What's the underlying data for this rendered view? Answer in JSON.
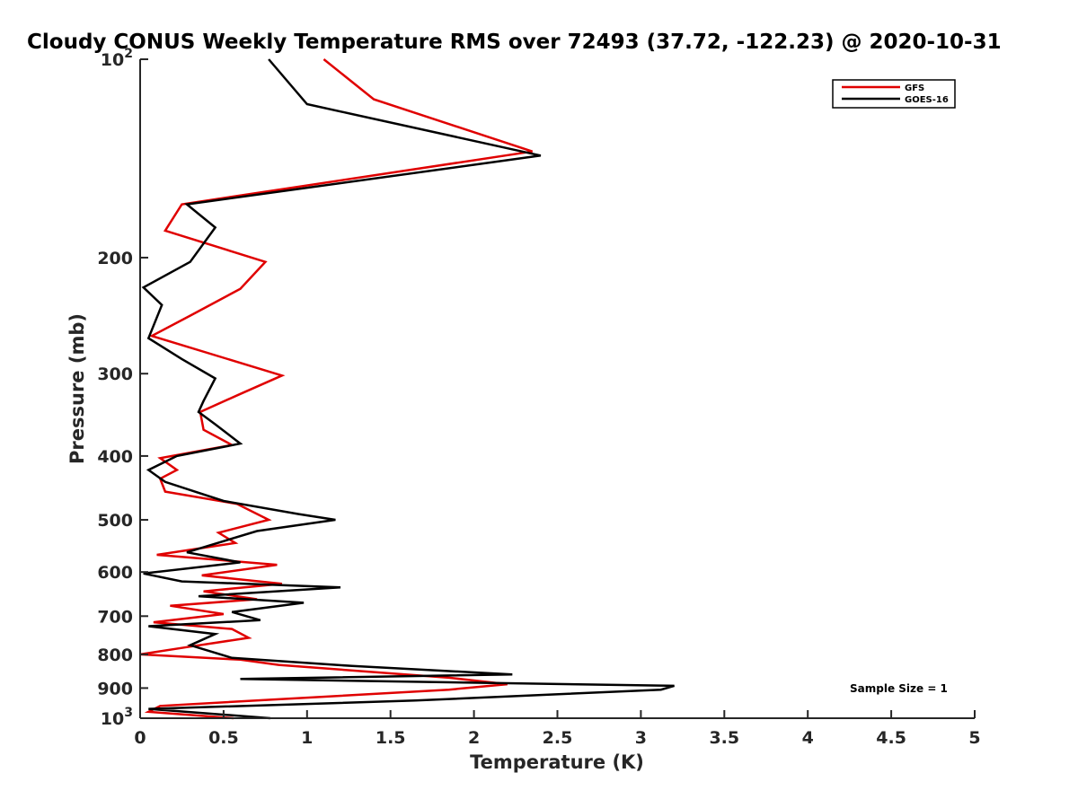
{
  "chart_data": {
    "type": "line",
    "title": "Cloudy CONUS Weekly Temperature RMS over 72493 (37.72, -122.23) @ 2020-10-31",
    "xlabel": "Temperature (K)",
    "ylabel": "Pressure (mb)",
    "xlim": [
      0,
      5
    ],
    "ylim": [
      100,
      1000
    ],
    "y_scale": "log",
    "y_reversed": true,
    "x_ticks": [
      "0",
      "0.5",
      "1",
      "1.5",
      "2",
      "2.5",
      "3",
      "3.5",
      "4",
      "4.5",
      "5"
    ],
    "y_ticks": [
      {
        "value": 100,
        "base": "10",
        "exp": "2"
      },
      {
        "value": 200,
        "label": "200"
      },
      {
        "value": 300,
        "label": "300"
      },
      {
        "value": 400,
        "label": "400"
      },
      {
        "value": 500,
        "label": "500"
      },
      {
        "value": 600,
        "label": "600"
      },
      {
        "value": 700,
        "label": "700"
      },
      {
        "value": 800,
        "label": "800"
      },
      {
        "value": 900,
        "label": "900"
      },
      {
        "value": 1000,
        "base": "10",
        "exp": "3"
      }
    ],
    "grid": false,
    "legend_position": "top-right",
    "annotation": "Sample Size = 1",
    "series": [
      {
        "name": "GFS",
        "color": "#e00000",
        "points": [
          [
            1.1,
            100
          ],
          [
            1.4,
            115
          ],
          [
            2.35,
            138
          ],
          [
            0.25,
            166
          ],
          [
            0.15,
            182
          ],
          [
            0.75,
            203
          ],
          [
            0.6,
            223
          ],
          [
            0.3,
            245
          ],
          [
            0.07,
            263
          ],
          [
            0.85,
            302
          ],
          [
            0.6,
            322
          ],
          [
            0.36,
            343
          ],
          [
            0.38,
            365
          ],
          [
            0.55,
            385
          ],
          [
            0.12,
            403
          ],
          [
            0.22,
            420
          ],
          [
            0.12,
            433
          ],
          [
            0.15,
            453
          ],
          [
            0.58,
            473
          ],
          [
            0.77,
            500
          ],
          [
            0.47,
            523
          ],
          [
            0.57,
            542
          ],
          [
            0.1,
            565
          ],
          [
            0.82,
            585
          ],
          [
            0.37,
            607
          ],
          [
            0.85,
            625
          ],
          [
            0.38,
            642
          ],
          [
            0.7,
            660
          ],
          [
            0.18,
            675
          ],
          [
            0.5,
            695
          ],
          [
            0.08,
            715
          ],
          [
            0.55,
            732
          ],
          [
            0.65,
            755
          ],
          [
            0.28,
            780
          ],
          [
            0.0,
            800
          ],
          [
            0.6,
            815
          ],
          [
            0.83,
            830
          ],
          [
            1.85,
            868
          ],
          [
            2.2,
            888
          ],
          [
            1.85,
            905
          ],
          [
            0.12,
            958
          ],
          [
            0.05,
            978
          ],
          [
            0.56,
            1000
          ]
        ]
      },
      {
        "name": "GOES-16",
        "color": "#000000",
        "points": [
          [
            0.77,
            100
          ],
          [
            1.0,
            117
          ],
          [
            2.4,
            140
          ],
          [
            0.28,
            166
          ],
          [
            0.45,
            180
          ],
          [
            0.3,
            203
          ],
          [
            0.02,
            222
          ],
          [
            0.13,
            236
          ],
          [
            0.05,
            265
          ],
          [
            0.25,
            285
          ],
          [
            0.45,
            305
          ],
          [
            0.38,
            330
          ],
          [
            0.35,
            343
          ],
          [
            0.45,
            358
          ],
          [
            0.6,
            383
          ],
          [
            0.22,
            400
          ],
          [
            0.05,
            420
          ],
          [
            0.15,
            438
          ],
          [
            0.5,
            468
          ],
          [
            0.95,
            490
          ],
          [
            1.17,
            500
          ],
          [
            0.7,
            520
          ],
          [
            0.28,
            560
          ],
          [
            0.6,
            580
          ],
          [
            0.02,
            603
          ],
          [
            0.25,
            620
          ],
          [
            1.2,
            633
          ],
          [
            0.35,
            653
          ],
          [
            0.98,
            668
          ],
          [
            0.55,
            690
          ],
          [
            0.72,
            710
          ],
          [
            0.05,
            725
          ],
          [
            0.45,
            745
          ],
          [
            0.3,
            775
          ],
          [
            0.55,
            810
          ],
          [
            1.27,
            833
          ],
          [
            2.23,
            858
          ],
          [
            0.6,
            872
          ],
          [
            3.2,
            893
          ],
          [
            3.12,
            905
          ],
          [
            1.65,
            940
          ],
          [
            0.05,
            968
          ],
          [
            0.78,
            1000
          ]
        ]
      }
    ]
  }
}
